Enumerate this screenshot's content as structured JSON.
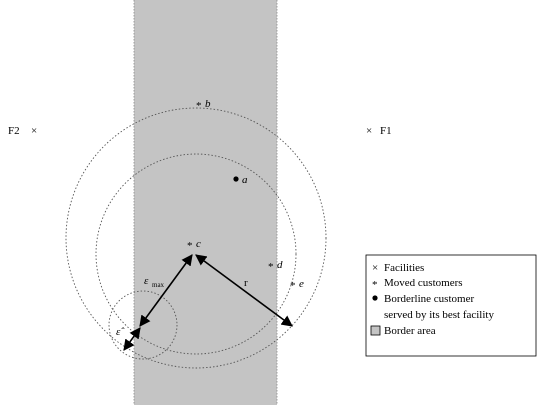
{
  "facilities": {
    "f2_label": "F2",
    "f1_label": "F1",
    "symbol": "×"
  },
  "customers": {
    "moved_symbol": "*",
    "borderline_symbol": "●",
    "a": "a",
    "b": "b",
    "c": "c",
    "d": "d",
    "e": "e"
  },
  "annotations": {
    "epsilon_max_base": "ε",
    "epsilon_max_sub": "max",
    "epsilon_hat": "ε̂",
    "radius": "r"
  },
  "legend": {
    "facilities": "Facilities",
    "moved_customers": "Moved customers",
    "borderline_line1": "Borderline customer",
    "borderline_line2": "served by its best facility",
    "border_area": "Border area"
  },
  "colors": {
    "border_area_fill": "#c4c4c4",
    "border_area_edge": "#8a8a8a",
    "circle_stroke": "#555555"
  }
}
